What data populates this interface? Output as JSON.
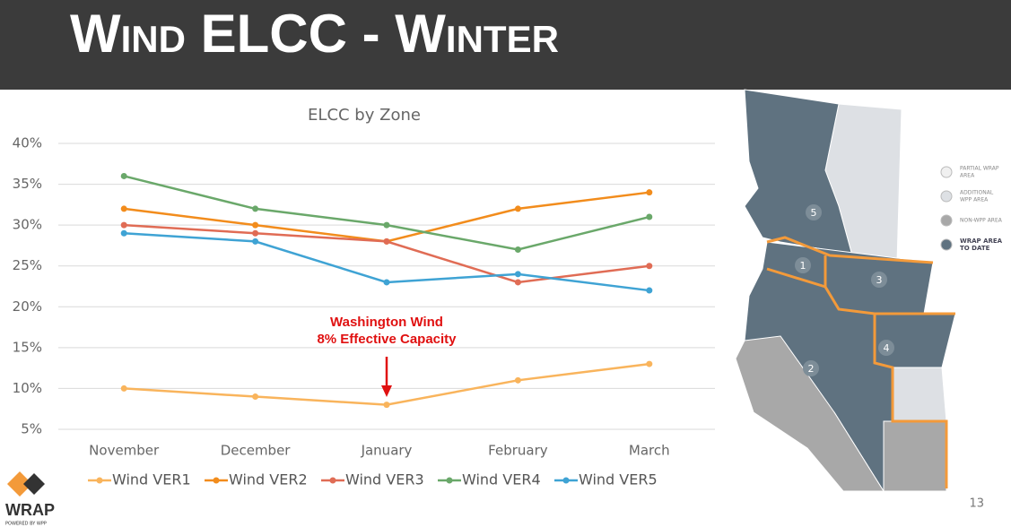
{
  "header": {
    "title": "Wind ELCC - Winter"
  },
  "chart_data": {
    "type": "line",
    "title": "ELCC by Zone",
    "categories": [
      "November",
      "December",
      "January",
      "February",
      "March"
    ],
    "series": [
      {
        "name": "Wind VER1",
        "color": "#f9b45c",
        "values": [
          10,
          9,
          8,
          11,
          13
        ]
      },
      {
        "name": "Wind VER2",
        "color": "#f28c1c",
        "values": [
          32,
          30,
          28,
          32,
          34
        ]
      },
      {
        "name": "Wind VER3",
        "color": "#e06c55",
        "values": [
          30,
          29,
          28,
          23,
          25
        ]
      },
      {
        "name": "Wind VER4",
        "color": "#6aa86a",
        "values": [
          36,
          32,
          30,
          27,
          31
        ]
      },
      {
        "name": "Wind VER5",
        "color": "#3fa3d4",
        "values": [
          29,
          28,
          23,
          24,
          22
        ]
      }
    ],
    "ylim": [
      5,
      40
    ],
    "yticks": [
      {
        "value": 5,
        "label": "5%"
      },
      {
        "value": 10,
        "label": "10%"
      },
      {
        "value": 15,
        "label": "15%"
      },
      {
        "value": 20,
        "label": "20%"
      },
      {
        "value": 25,
        "label": "25%"
      },
      {
        "value": 30,
        "label": "30%"
      },
      {
        "value": 35,
        "label": "35%"
      },
      {
        "value": 40,
        "label": "40%"
      }
    ],
    "grid": true,
    "legend": "bottom",
    "annotation": {
      "lines": [
        "Washington Wind",
        "8% Effective Capacity"
      ],
      "color": "#e01010"
    }
  },
  "map": {
    "zones": [
      "1",
      "2",
      "3",
      "4",
      "5"
    ],
    "legend": [
      [
        "PARTIAL WRAP",
        "AREA"
      ],
      [
        "ADDITIONAL",
        "WPP AREA"
      ],
      [
        "NON-WPP AREA"
      ],
      [
        "WRAP AREA",
        "TO DATE"
      ]
    ]
  },
  "page_number": "13",
  "logo": {
    "name": "WRAP",
    "tagline": "POWERED BY WPP"
  }
}
